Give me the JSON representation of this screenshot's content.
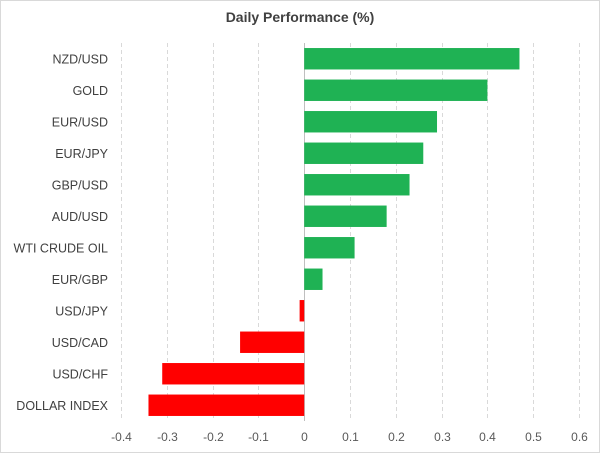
{
  "chart_data": {
    "type": "bar",
    "orientation": "horizontal",
    "title": "Daily Performance (%)",
    "xlabel": "",
    "ylabel": "",
    "categories": [
      "NZD/USD",
      "GOLD",
      "EUR/USD",
      "EUR/JPY",
      "GBP/USD",
      "AUD/USD",
      "WTI CRUDE OIL",
      "EUR/GBP",
      "USD/JPY",
      "USD/CAD",
      "USD/CHF",
      "DOLLAR INDEX"
    ],
    "values": [
      0.47,
      0.4,
      0.29,
      0.26,
      0.23,
      0.18,
      0.11,
      0.04,
      -0.01,
      -0.14,
      -0.31,
      -0.34
    ],
    "xlim": [
      -0.4,
      0.6
    ],
    "ticks": [
      -0.4,
      -0.3,
      -0.2,
      -0.1,
      0,
      0.1,
      0.2,
      0.3,
      0.4,
      0.5,
      0.6
    ],
    "tick_labels": [
      "-0.4",
      "-0.3",
      "-0.2",
      "-0.1",
      "0",
      "0.1",
      "0.2",
      "0.3",
      "0.4",
      "0.5",
      "0.6"
    ],
    "grid": true,
    "legend": "none",
    "colors": {
      "positive": "#1fb254",
      "negative": "#ff0000"
    }
  }
}
